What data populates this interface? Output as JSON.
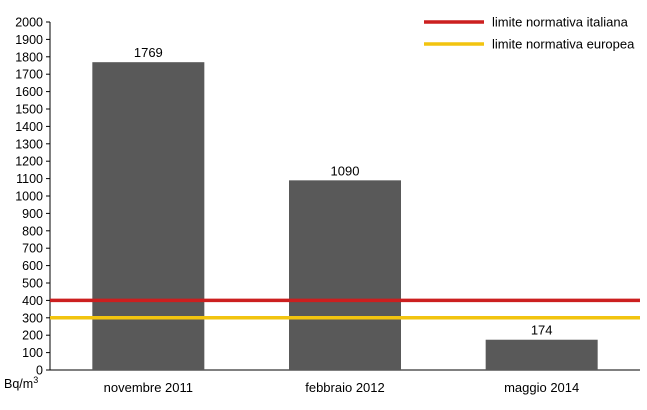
{
  "chart_data": {
    "type": "bar",
    "categories": [
      "novembre 2011",
      "febbraio 2012",
      "maggio 2014"
    ],
    "values": [
      1769,
      1090,
      174
    ],
    "data_labels": [
      "1769",
      "1090",
      "174"
    ],
    "ylim": [
      0,
      2000
    ],
    "y_ticks": [
      0,
      100,
      200,
      300,
      400,
      500,
      600,
      700,
      800,
      900,
      1000,
      1100,
      1200,
      1300,
      1400,
      1500,
      1600,
      1700,
      1800,
      1900,
      2000
    ],
    "y_unit": "Bq/m",
    "y_unit_sup": "3",
    "bar_color": "#595959",
    "grid": false,
    "legend_position": "top-right",
    "reference_lines": [
      {
        "name": "limite normativa italiana",
        "value": 400,
        "color": "#cc1f1f"
      },
      {
        "name": "limite normativa europea",
        "value": 300,
        "color": "#f2c40f"
      }
    ]
  }
}
